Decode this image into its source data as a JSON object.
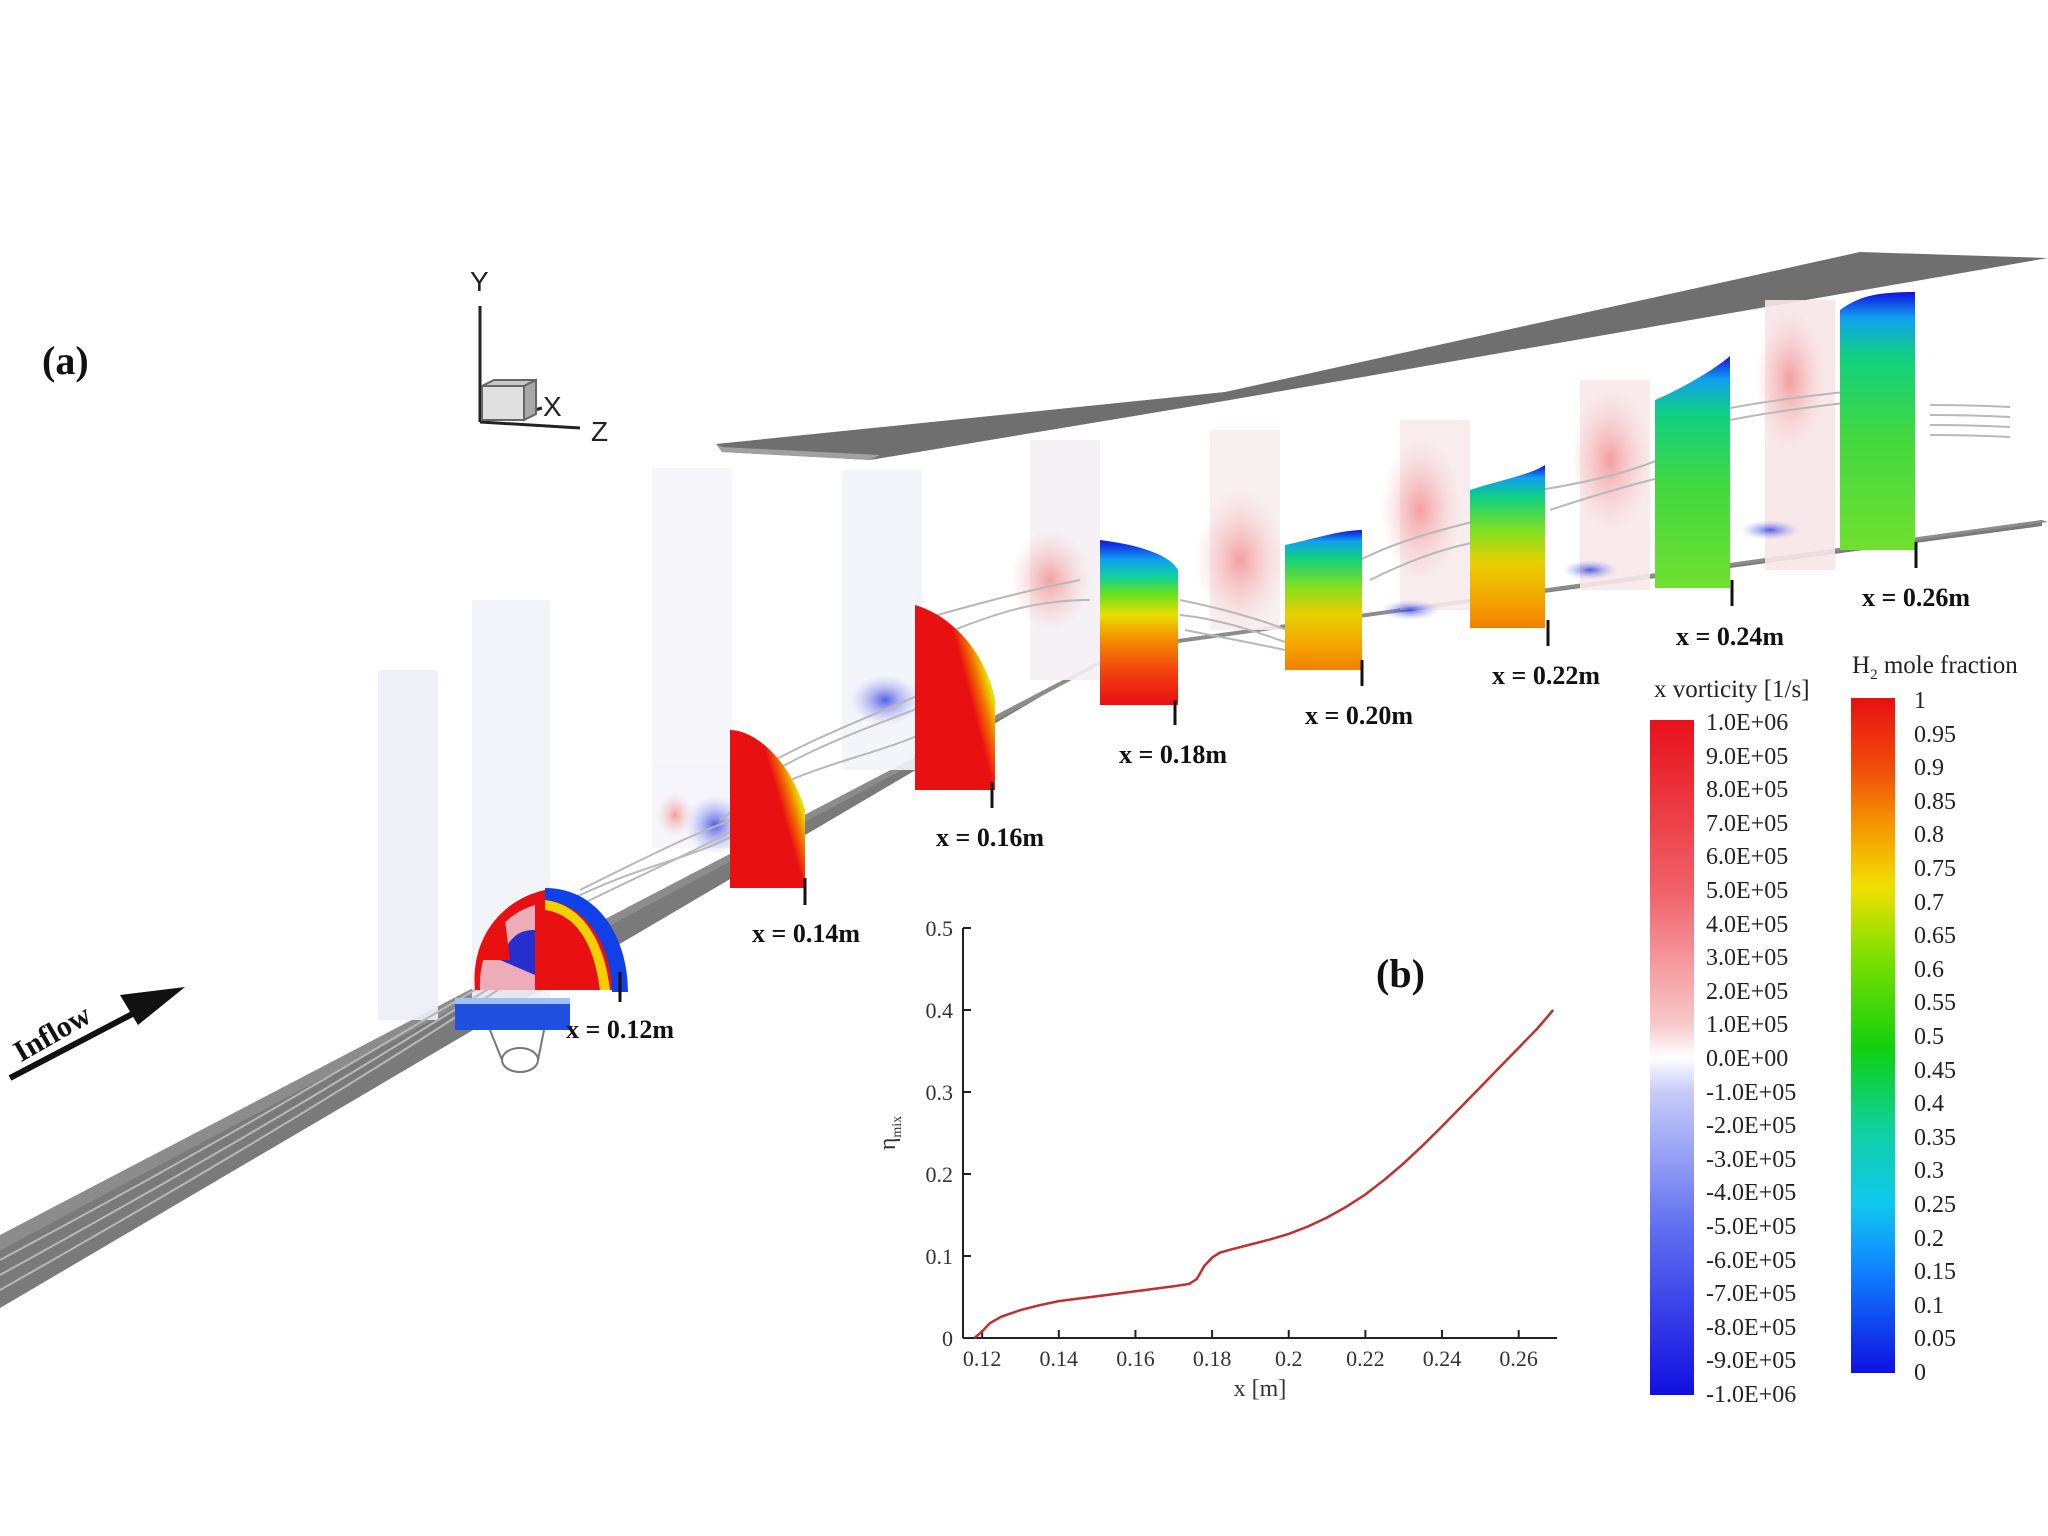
{
  "figure": {
    "panel_a": "(a)",
    "panel_b": "(b)",
    "inflow_label": "Inflow",
    "axes_triad": {
      "y": "Y",
      "x": "X",
      "z": "Z"
    },
    "station_labels": [
      "x = 0.12m",
      "x = 0.14m",
      "x = 0.16m",
      "x = 0.18m",
      "x = 0.20m",
      "x = 0.22m",
      "x = 0.24m",
      "x = 0.26m"
    ]
  },
  "colorbars": {
    "vorticity": {
      "title": "x vorticity [1/s]",
      "ticks": [
        "1.0E+06",
        "9.0E+05",
        "8.0E+05",
        "7.0E+05",
        "6.0E+05",
        "5.0E+05",
        "4.0E+05",
        "3.0E+05",
        "2.0E+05",
        "1.0E+05",
        "0.0E+00",
        "-1.0E+05",
        "-2.0E+05",
        "-3.0E+05",
        "-4.0E+05",
        "-5.0E+05",
        "-6.0E+05",
        "-7.0E+05",
        "-8.0E+05",
        "-9.0E+05",
        "-1.0E+06"
      ],
      "colors": {
        "max": "#e8111a",
        "zero": "#ffffff",
        "min": "#1010e0"
      }
    },
    "h2": {
      "title_main": "H",
      "title_sub": "2",
      "title_rest": " mole fraction",
      "ticks": [
        "1",
        "0.95",
        "0.9",
        "0.85",
        "0.8",
        "0.75",
        "0.7",
        "0.65",
        "0.6",
        "0.55",
        "0.5",
        "0.45",
        "0.4",
        "0.35",
        "0.3",
        "0.25",
        "0.2",
        "0.15",
        "0.1",
        "0.05",
        "0"
      ],
      "colors": [
        "#e81010",
        "#f04a0a",
        "#f5a000",
        "#f0e000",
        "#80e000",
        "#10d010",
        "#10c8c8",
        "#1080ff",
        "#1010e0"
      ]
    }
  },
  "chart_data": {
    "type": "line",
    "title": "",
    "xlabel": "x [m]",
    "ylabel_main": "η",
    "ylabel_sub": "mix",
    "xlim": [
      0.115,
      0.27
    ],
    "ylim": [
      0,
      0.5
    ],
    "xticks": [
      0.12,
      0.14,
      0.16,
      0.18,
      0.2,
      0.22,
      0.24,
      0.26
    ],
    "xtick_labels": [
      "0.12",
      "0.14",
      "0.16",
      "0.18",
      "0.2",
      "0.22",
      "0.24",
      "0.26"
    ],
    "yticks": [
      0,
      0.1,
      0.2,
      0.3,
      0.4,
      0.5
    ],
    "ytick_labels": [
      "0",
      "0.1",
      "0.2",
      "0.3",
      "0.4",
      "0.5"
    ],
    "line_color": "#c03030",
    "series": [
      {
        "x": [
          0.118,
          0.12,
          0.122,
          0.125,
          0.13,
          0.135,
          0.14,
          0.145,
          0.15,
          0.155,
          0.16,
          0.165,
          0.17,
          0.174,
          0.176,
          0.178,
          0.18,
          0.182,
          0.185,
          0.19,
          0.195,
          0.2,
          0.205,
          0.21,
          0.215,
          0.22,
          0.225,
          0.23,
          0.235,
          0.24,
          0.245,
          0.25,
          0.255,
          0.26,
          0.265,
          0.269
        ],
        "y": [
          0.0,
          0.008,
          0.018,
          0.026,
          0.034,
          0.04,
          0.045,
          0.048,
          0.051,
          0.054,
          0.057,
          0.06,
          0.063,
          0.066,
          0.072,
          0.088,
          0.098,
          0.104,
          0.108,
          0.114,
          0.12,
          0.127,
          0.136,
          0.147,
          0.16,
          0.175,
          0.193,
          0.213,
          0.235,
          0.258,
          0.282,
          0.306,
          0.33,
          0.354,
          0.378,
          0.4
        ]
      }
    ]
  }
}
